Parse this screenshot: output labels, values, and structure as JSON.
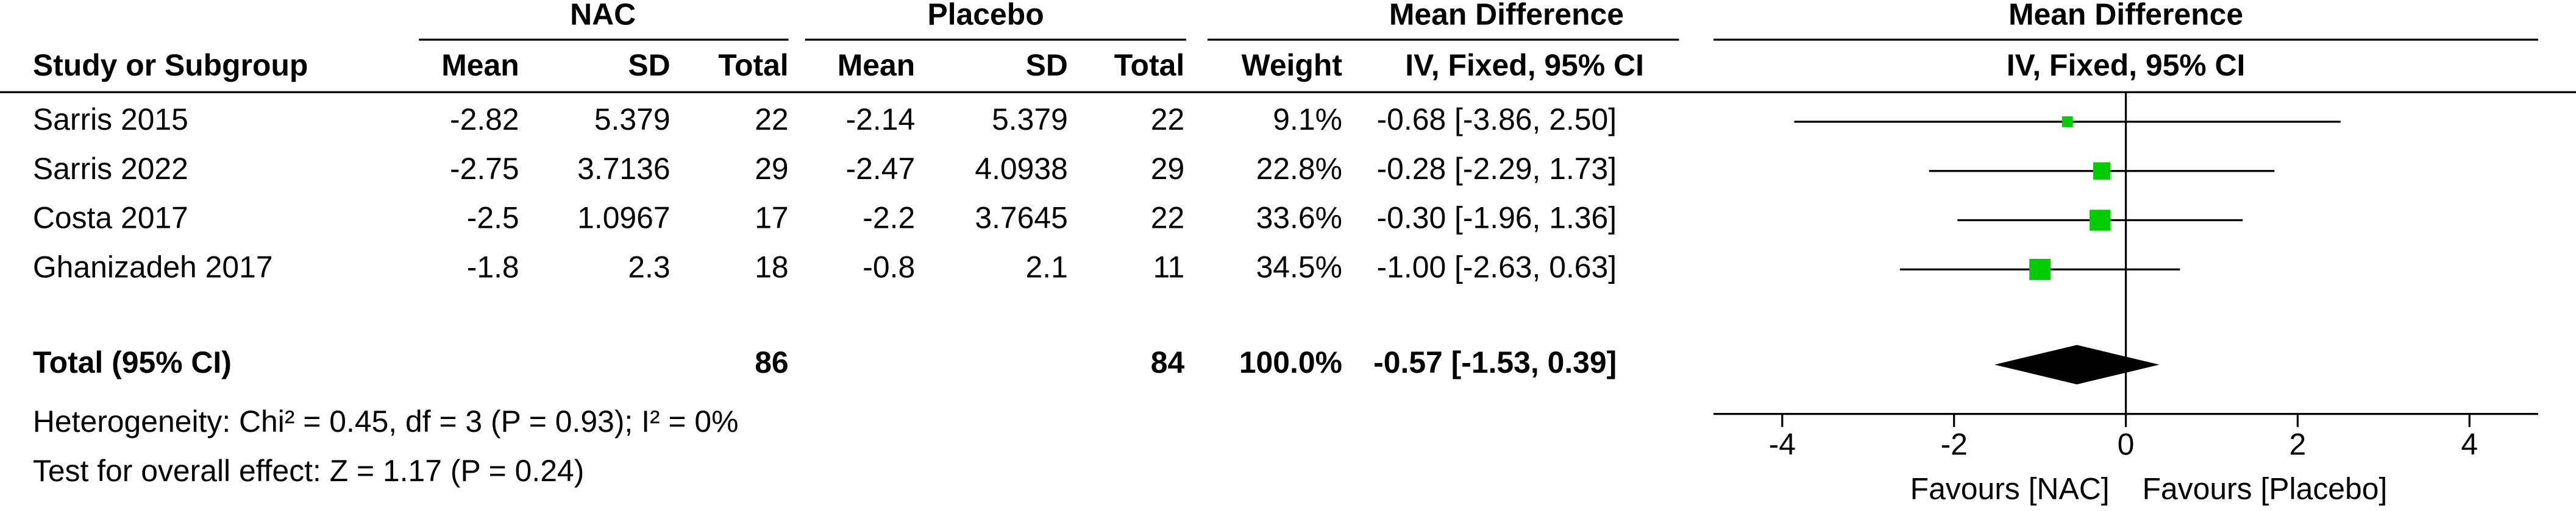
{
  "chart_data": {
    "type": "forest",
    "group_headers": {
      "nac": "NAC",
      "placebo": "Placebo",
      "table_md": "Mean Difference",
      "plot_md": "Mean Difference"
    },
    "columns": {
      "study": "Study or Subgroup",
      "nac_mean": "Mean",
      "nac_sd": "SD",
      "nac_total": "Total",
      "pl_mean": "Mean",
      "pl_sd": "SD",
      "pl_total": "Total",
      "weight": "Weight",
      "ci": "IV, Fixed, 95% CI",
      "plot": "IV, Fixed, 95% CI"
    },
    "studies": [
      {
        "name": "Sarris 2015",
        "nac_mean": -2.82,
        "nac_sd": 5.379,
        "nac_total": 22,
        "pl_mean": -2.14,
        "pl_sd": 5.379,
        "pl_total": 22,
        "weight": 9.1,
        "weight_label": "9.1%",
        "md": -0.68,
        "ci_low": -3.86,
        "ci_high": 2.5,
        "ci_label": "-0.68 [-3.86, 2.50]"
      },
      {
        "name": "Sarris 2022",
        "nac_mean": -2.75,
        "nac_sd": 3.7136,
        "nac_total": 29,
        "pl_mean": -2.47,
        "pl_sd": 4.0938,
        "pl_total": 29,
        "weight": 22.8,
        "weight_label": "22.8%",
        "md": -0.28,
        "ci_low": -2.29,
        "ci_high": 1.73,
        "ci_label": "-0.28 [-2.29, 1.73]"
      },
      {
        "name": "Costa 2017",
        "nac_mean": -2.5,
        "nac_sd": 1.0967,
        "nac_total": 17,
        "pl_mean": -2.2,
        "pl_sd": 3.7645,
        "pl_total": 22,
        "weight": 33.6,
        "weight_label": "33.6%",
        "md": -0.3,
        "ci_low": -1.96,
        "ci_high": 1.36,
        "ci_label": "-0.30 [-1.96, 1.36]"
      },
      {
        "name": "Ghanizadeh 2017",
        "nac_mean": -1.8,
        "nac_sd": 2.3,
        "nac_total": 18,
        "pl_mean": -0.8,
        "pl_sd": 2.1,
        "pl_total": 11,
        "weight": 34.5,
        "weight_label": "34.5%",
        "md": -1.0,
        "ci_low": -2.63,
        "ci_high": 0.63,
        "ci_label": "-1.00 [-2.63, 0.63]"
      }
    ],
    "total": {
      "name": "Total (95% CI)",
      "nac_total": 86,
      "pl_total": 84,
      "weight": 100,
      "weight_label": "100.0%",
      "md": -0.57,
      "ci_low": -1.53,
      "ci_high": 0.39,
      "ci_label": "-0.57 [-1.53, 0.39]"
    },
    "heterogeneity": "Heterogeneity: Chi² = 0.45, df = 3 (P = 0.93); I² = 0%",
    "overall_effect": "Test for overall effect: Z = 1.17 (P = 0.24)",
    "xlim": [
      -4.8,
      4.8
    ],
    "xticks": [
      -4,
      -2,
      0,
      2,
      4
    ],
    "favours_left": "Favours [NAC]",
    "favours_right": "Favours [Placebo]",
    "marker_color": "#00cc00"
  }
}
